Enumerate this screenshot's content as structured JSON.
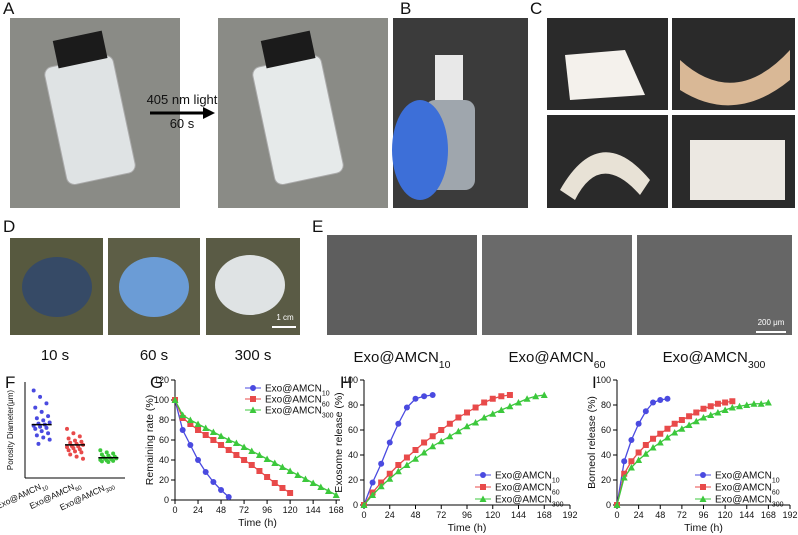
{
  "panels": {
    "A": {
      "label": "A",
      "arrow_text": "405 nm light",
      "time": "60 s"
    },
    "B": {
      "label": "B"
    },
    "C": {
      "label": "C"
    },
    "D": {
      "label": "D",
      "captions": [
        "10 s",
        "60 s",
        "300 s"
      ],
      "scale": "1 cm"
    },
    "E": {
      "label": "E",
      "captions": [
        "Exo@AMCN10",
        "Exo@AMCN60",
        "Exo@AMCN300"
      ],
      "scale": "200 μm"
    }
  },
  "chart_data": [
    {
      "type": "strip",
      "label": "F",
      "y_label": "Porosity Diameter(μm)",
      "ylim": [
        0,
        450
      ],
      "categories": [
        "Exo@AMCN10",
        "Exo@AMCN60",
        "Exo@AMCN300"
      ],
      "colors": [
        "#4a4ae0",
        "#e84a4a",
        "#3cc83c"
      ],
      "groups": [
        [
          410,
          380,
          350,
          330,
          310,
          290,
          280,
          270,
          260,
          255,
          250,
          245,
          240,
          235,
          230,
          220,
          210,
          200,
          190,
          180,
          160
        ],
        [
          230,
          210,
          195,
          185,
          175,
          170,
          165,
          160,
          155,
          150,
          148,
          145,
          140,
          135,
          130,
          125,
          120,
          110,
          100,
          90
        ],
        [
          130,
          120,
          115,
          110,
          105,
          100,
          98,
          95,
          92,
          90,
          88,
          85,
          82,
          80,
          78,
          75
        ]
      ],
      "means": [
        250,
        155,
        95
      ]
    },
    {
      "type": "line",
      "label": "G",
      "x_label": "Time (h)",
      "y_label": "Remaining rate (%)",
      "xlim": [
        0,
        172
      ],
      "ylim": [
        0,
        120
      ],
      "xticks": [
        0,
        24,
        48,
        72,
        96,
        120,
        144,
        168
      ],
      "yticks": [
        0,
        20,
        40,
        60,
        80,
        100,
        120
      ],
      "legend": "upper right",
      "series": [
        {
          "name": "Exo@AMCN10",
          "color": "#4a4ae0",
          "marker": "circle",
          "x": [
            0,
            8,
            16,
            24,
            32,
            40,
            48,
            56
          ],
          "values": [
            100,
            70,
            55,
            40,
            28,
            18,
            10,
            3
          ]
        },
        {
          "name": "Exo@AMCN60",
          "color": "#e84a4a",
          "marker": "square",
          "x": [
            0,
            8,
            16,
            24,
            32,
            40,
            48,
            56,
            64,
            72,
            80,
            88,
            96,
            104,
            112,
            120
          ],
          "values": [
            100,
            82,
            76,
            70,
            65,
            60,
            55,
            50,
            45,
            40,
            35,
            29,
            23,
            17,
            12,
            7
          ]
        },
        {
          "name": "Exo@AMCN300",
          "color": "#3cc83c",
          "marker": "triangle",
          "x": [
            0,
            8,
            16,
            24,
            32,
            40,
            48,
            56,
            64,
            72,
            80,
            88,
            96,
            104,
            112,
            120,
            128,
            136,
            144,
            152,
            160,
            168
          ],
          "values": [
            100,
            85,
            80,
            76,
            72,
            68,
            64,
            60,
            57,
            53,
            49,
            45,
            41,
            37,
            33,
            29,
            25,
            21,
            17,
            13,
            9,
            5
          ]
        }
      ]
    },
    {
      "type": "line",
      "label": "H",
      "x_label": "Time (h)",
      "y_label": "Exosome release (%)",
      "xlim": [
        0,
        192
      ],
      "ylim": [
        0,
        100
      ],
      "xticks": [
        0,
        24,
        48,
        72,
        96,
        120,
        144,
        168,
        192
      ],
      "yticks": [
        0,
        20,
        40,
        60,
        80,
        100
      ],
      "legend": "lower right",
      "series": [
        {
          "name": "Exo@AMCN10",
          "color": "#4a4ae0",
          "marker": "circle",
          "x": [
            0,
            8,
            16,
            24,
            32,
            40,
            48,
            56,
            64
          ],
          "values": [
            0,
            18,
            33,
            50,
            65,
            78,
            85,
            87,
            88
          ]
        },
        {
          "name": "Exo@AMCN60",
          "color": "#e84a4a",
          "marker": "square",
          "x": [
            0,
            8,
            16,
            24,
            32,
            40,
            48,
            56,
            64,
            72,
            80,
            88,
            96,
            104,
            112,
            120,
            128,
            136
          ],
          "values": [
            0,
            10,
            18,
            25,
            32,
            38,
            44,
            50,
            55,
            60,
            65,
            70,
            74,
            78,
            82,
            85,
            87,
            88
          ]
        },
        {
          "name": "Exo@AMCN300",
          "color": "#3cc83c",
          "marker": "triangle",
          "x": [
            0,
            8,
            16,
            24,
            32,
            40,
            48,
            56,
            64,
            72,
            80,
            88,
            96,
            104,
            112,
            120,
            128,
            136,
            144,
            152,
            160,
            168
          ],
          "values": [
            0,
            8,
            15,
            21,
            27,
            32,
            37,
            42,
            47,
            51,
            55,
            59,
            63,
            66,
            70,
            73,
            76,
            79,
            82,
            85,
            87,
            88
          ]
        }
      ]
    },
    {
      "type": "line",
      "label": "I",
      "x_label": "Time (h)",
      "y_label": "Borneol release (%)",
      "xlim": [
        0,
        192
      ],
      "ylim": [
        0,
        100
      ],
      "xticks": [
        0,
        24,
        48,
        72,
        96,
        120,
        144,
        168,
        192
      ],
      "yticks": [
        0,
        20,
        40,
        60,
        80,
        100
      ],
      "legend": "lower right",
      "series": [
        {
          "name": "Exo@AMCN10",
          "color": "#4a4ae0",
          "marker": "circle",
          "x": [
            0,
            8,
            16,
            24,
            32,
            40,
            48,
            56
          ],
          "values": [
            0,
            35,
            52,
            65,
            75,
            82,
            84,
            85
          ]
        },
        {
          "name": "Exo@AMCN60",
          "color": "#e84a4a",
          "marker": "square",
          "x": [
            0,
            8,
            16,
            24,
            32,
            40,
            48,
            56,
            64,
            72,
            80,
            88,
            96,
            104,
            112,
            120,
            128
          ],
          "values": [
            0,
            25,
            35,
            42,
            48,
            53,
            57,
            61,
            65,
            68,
            71,
            74,
            77,
            79,
            81,
            82,
            83
          ]
        },
        {
          "name": "Exo@AMCN300",
          "color": "#3cc83c",
          "marker": "triangle",
          "x": [
            0,
            8,
            16,
            24,
            32,
            40,
            48,
            56,
            64,
            72,
            80,
            88,
            96,
            104,
            112,
            120,
            128,
            136,
            144,
            152,
            160,
            168
          ],
          "values": [
            0,
            22,
            30,
            36,
            41,
            46,
            50,
            54,
            58,
            61,
            64,
            67,
            70,
            72,
            74,
            76,
            78,
            79,
            80,
            81,
            81,
            82
          ]
        }
      ]
    }
  ]
}
